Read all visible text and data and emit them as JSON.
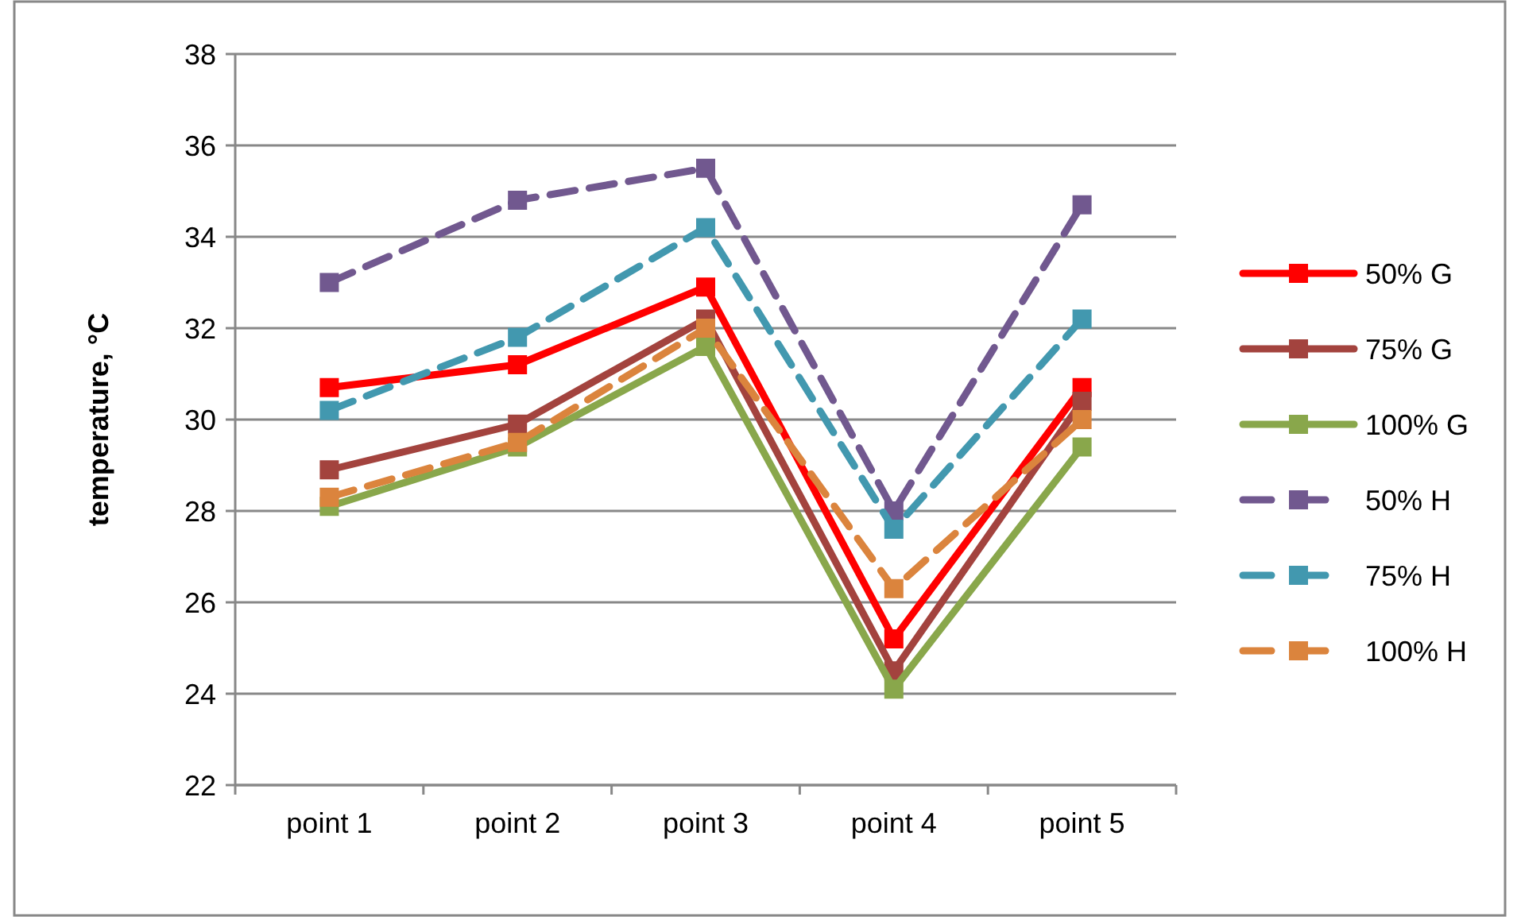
{
  "chart_data": {
    "type": "line",
    "ylabel": "temperature, °C",
    "categories": [
      "point 1",
      "point 2",
      "point 3",
      "point 4",
      "point 5"
    ],
    "series": [
      {
        "name": "50% G",
        "color": "#ff0000",
        "line_style": "solid",
        "values": [
          30.7,
          31.2,
          32.9,
          25.2,
          30.7
        ]
      },
      {
        "name": "75% G",
        "color": "#a3433e",
        "line_style": "solid",
        "values": [
          28.9,
          29.9,
          32.2,
          24.5,
          30.4
        ]
      },
      {
        "name": "100% G",
        "color": "#89a74b",
        "line_style": "solid",
        "values": [
          28.1,
          29.4,
          31.6,
          24.1,
          29.4
        ]
      },
      {
        "name": "50% H",
        "color": "#71588f",
        "line_style": "dashed",
        "values": [
          33.0,
          34.8,
          35.5,
          28.0,
          34.7
        ]
      },
      {
        "name": "75% H",
        "color": "#4298af",
        "line_style": "dashed",
        "values": [
          30.2,
          31.8,
          34.2,
          27.6,
          32.2
        ]
      },
      {
        "name": "100% H",
        "color": "#db843d",
        "line_style": "dashed",
        "values": [
          28.3,
          29.5,
          32.0,
          26.3,
          30.0
        ]
      }
    ],
    "ylim": [
      22,
      38
    ],
    "yticks": [
      22,
      24,
      26,
      28,
      30,
      32,
      34,
      36,
      38
    ],
    "grid": "y",
    "legend": "right",
    "marker": "square"
  }
}
